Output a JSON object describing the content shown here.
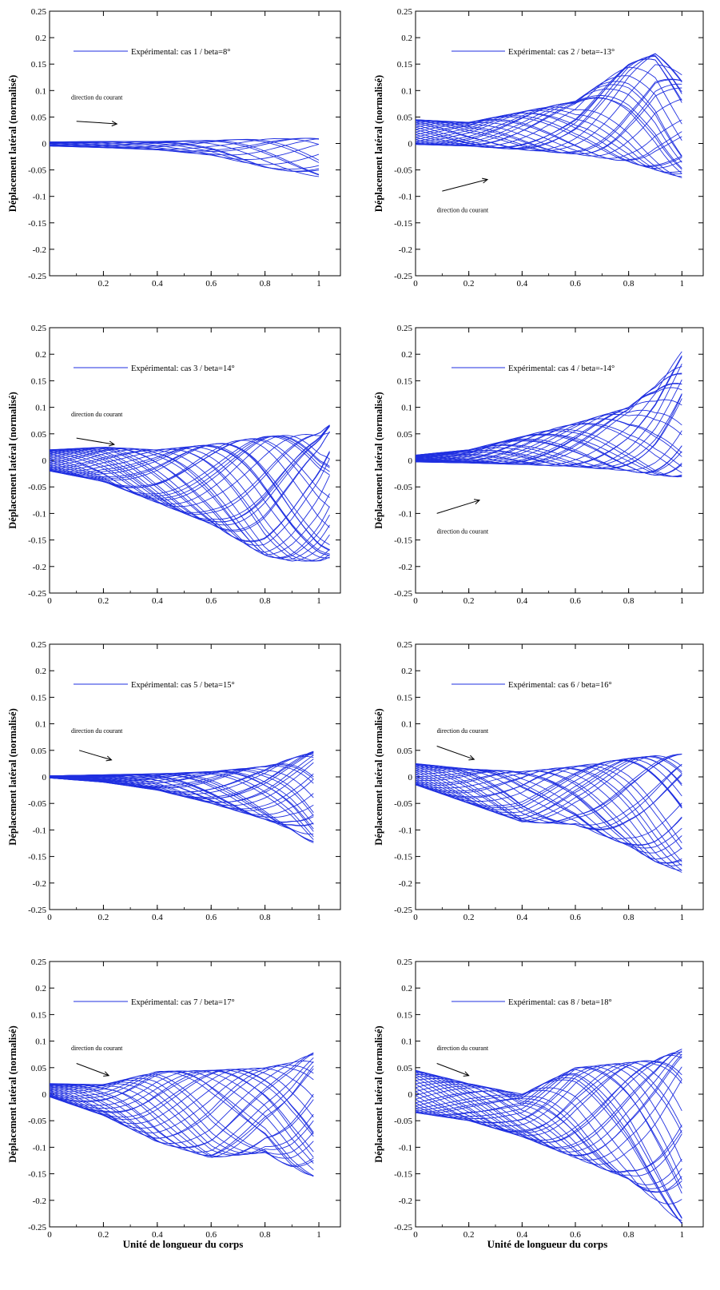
{
  "figure": {
    "x_axis_label": "Unité de longueur du corps",
    "y_axis_label": "Déplacement latéral (normalisé)",
    "annotation": "direction du courant",
    "line_color": "#1f2fe0"
  },
  "chart_data": [
    {
      "type": "line",
      "legend": "Expérimental: cas 1 /  beta=8°",
      "ylabel": "Déplacement latéral (normalisé)",
      "xlabel": "",
      "xlim": [
        0,
        1.08
      ],
      "ylim": [
        -0.25,
        0.25
      ],
      "x_ticks": [
        0.2,
        0.4,
        0.6,
        0.8,
        1
      ],
      "y_ticks": [
        -0.25,
        -0.2,
        -0.15,
        -0.1,
        -0.05,
        0,
        0.05,
        0.1,
        0.15,
        0.2,
        0.25
      ],
      "envelope": {
        "x": [
          0,
          0.2,
          0.4,
          0.6,
          0.8,
          1.0
        ],
        "upper": [
          0.003,
          0.004,
          0.004,
          0.006,
          0.009,
          0.01
        ],
        "lower": [
          -0.005,
          -0.008,
          -0.012,
          -0.022,
          -0.045,
          -0.063
        ]
      },
      "n_curves": 14,
      "arrow": {
        "from": [
          0.1,
          0.042
        ],
        "to": [
          0.25,
          0.037
        ]
      },
      "annotation_position": [
        0.08,
        0.083
      ]
    },
    {
      "type": "line",
      "legend": "Expérimental: cas 2 /  beta=-13°",
      "ylabel": "Déplacement latéral (normalisé)",
      "xlabel": "",
      "xlim": [
        0,
        1.08
      ],
      "ylim": [
        -0.25,
        0.25
      ],
      "x_ticks": [
        0,
        0.2,
        0.4,
        0.6,
        0.8,
        1
      ],
      "y_ticks": [
        -0.25,
        -0.2,
        -0.15,
        -0.1,
        -0.05,
        0,
        0.05,
        0.1,
        0.15,
        0.2,
        0.25
      ],
      "envelope": {
        "x": [
          0,
          0.2,
          0.4,
          0.6,
          0.8,
          0.9,
          1.0
        ],
        "upper": [
          0.045,
          0.04,
          0.06,
          0.08,
          0.15,
          0.17,
          0.13
        ],
        "lower": [
          -0.002,
          -0.005,
          -0.012,
          -0.02,
          -0.035,
          -0.05,
          -0.065
        ]
      },
      "n_curves": 30,
      "arrow": {
        "from": [
          0.1,
          -0.09
        ],
        "to": [
          0.27,
          -0.068
        ]
      },
      "annotation_position": [
        0.08,
        -0.13
      ]
    },
    {
      "type": "line",
      "legend": "Expérimental: cas 3 / beta=14°",
      "ylabel": "Déplacement latéral (normalisé)",
      "xlabel": "",
      "xlim": [
        0,
        1.08
      ],
      "ylim": [
        -0.25,
        0.25
      ],
      "x_ticks": [
        0,
        0.2,
        0.4,
        0.6,
        0.8,
        1
      ],
      "y_ticks": [
        -0.25,
        -0.2,
        -0.15,
        -0.1,
        -0.05,
        0,
        0.05,
        0.1,
        0.15,
        0.2,
        0.25
      ],
      "envelope": {
        "x": [
          0,
          0.2,
          0.4,
          0.6,
          0.8,
          0.9,
          1.0,
          1.04
        ],
        "upper": [
          0.02,
          0.025,
          0.02,
          0.03,
          0.045,
          0.048,
          0.05,
          0.068
        ],
        "lower": [
          -0.02,
          -0.04,
          -0.08,
          -0.12,
          -0.18,
          -0.19,
          -0.19,
          -0.185
        ]
      },
      "n_curves": 36,
      "arrow": {
        "from": [
          0.1,
          0.042
        ],
        "to": [
          0.24,
          0.03
        ]
      },
      "annotation_position": [
        0.08,
        0.083
      ]
    },
    {
      "type": "line",
      "legend": "Expérimental: cas 4 /  beta=-14°",
      "ylabel": "Déplacement latéral (normalisé)",
      "xlabel": "",
      "xlim": [
        0,
        1.08
      ],
      "ylim": [
        -0.25,
        0.25
      ],
      "x_ticks": [
        0,
        0.2,
        0.4,
        0.6,
        0.8,
        1
      ],
      "y_ticks": [
        -0.25,
        -0.2,
        -0.15,
        -0.1,
        -0.05,
        0,
        0.05,
        0.1,
        0.15,
        0.2,
        0.25
      ],
      "envelope": {
        "x": [
          0,
          0.2,
          0.4,
          0.6,
          0.8,
          0.9,
          1.0
        ],
        "upper": [
          0.01,
          0.02,
          0.045,
          0.07,
          0.1,
          0.14,
          0.205
        ],
        "lower": [
          -0.003,
          -0.005,
          -0.008,
          -0.012,
          -0.02,
          -0.028,
          -0.032
        ]
      },
      "n_curves": 30,
      "arrow": {
        "from": [
          0.08,
          -0.1
        ],
        "to": [
          0.24,
          -0.075
        ]
      },
      "annotation_position": [
        0.08,
        -0.138
      ]
    },
    {
      "type": "line",
      "legend": "Expérimental: cas 5 /  beta=15°",
      "ylabel": "Déplacement latéral (normalisé)",
      "xlabel": "",
      "xlim": [
        0,
        1.08
      ],
      "ylim": [
        -0.25,
        0.25
      ],
      "x_ticks": [
        0,
        0.2,
        0.4,
        0.6,
        0.8,
        1
      ],
      "y_ticks": [
        -0.25,
        -0.2,
        -0.15,
        -0.1,
        -0.05,
        0,
        0.05,
        0.1,
        0.15,
        0.2,
        0.25
      ],
      "envelope": {
        "x": [
          0,
          0.2,
          0.4,
          0.6,
          0.8,
          0.9,
          0.98
        ],
        "upper": [
          0.002,
          0.004,
          0.006,
          0.01,
          0.02,
          0.035,
          0.048
        ],
        "lower": [
          -0.002,
          -0.01,
          -0.025,
          -0.05,
          -0.08,
          -0.1,
          -0.128
        ]
      },
      "n_curves": 32,
      "arrow": {
        "from": [
          0.11,
          0.05
        ],
        "to": [
          0.23,
          0.032
        ]
      },
      "annotation_position": [
        0.08,
        0.083
      ]
    },
    {
      "type": "line",
      "legend": "Expérimental: cas 6 /  beta=16°",
      "ylabel": "Déplacement latéral (normalisé)",
      "xlabel": "",
      "xlim": [
        0,
        1.08
      ],
      "ylim": [
        -0.25,
        0.25
      ],
      "x_ticks": [
        0,
        0.2,
        0.4,
        0.6,
        0.8,
        1
      ],
      "y_ticks": [
        -0.25,
        -0.2,
        -0.15,
        -0.1,
        -0.05,
        0,
        0.05,
        0.1,
        0.15,
        0.2,
        0.25
      ],
      "envelope": {
        "x": [
          0,
          0.2,
          0.4,
          0.6,
          0.8,
          0.9,
          1.0
        ],
        "upper": [
          0.025,
          0.015,
          0.01,
          0.02,
          0.035,
          0.04,
          0.043
        ],
        "lower": [
          -0.015,
          -0.05,
          -0.085,
          -0.09,
          -0.13,
          -0.16,
          -0.18
        ]
      },
      "n_curves": 32,
      "arrow": {
        "from": [
          0.08,
          0.058
        ],
        "to": [
          0.22,
          0.033
        ]
      },
      "annotation_position": [
        0.08,
        0.083
      ]
    },
    {
      "type": "line",
      "legend": "Expérimental: cas 7 /  beta=17°",
      "ylabel": "Déplacement latéral (normalisé)",
      "xlabel": "Unité de longueur du corps",
      "xlim": [
        0,
        1.08
      ],
      "ylim": [
        -0.25,
        0.25
      ],
      "x_ticks": [
        0,
        0.2,
        0.4,
        0.6,
        0.8,
        1
      ],
      "y_ticks": [
        -0.25,
        -0.2,
        -0.15,
        -0.1,
        -0.05,
        0,
        0.05,
        0.1,
        0.15,
        0.2,
        0.25
      ],
      "envelope": {
        "x": [
          0,
          0.2,
          0.4,
          0.6,
          0.8,
          0.9,
          0.98
        ],
        "upper": [
          0.02,
          0.018,
          0.043,
          0.045,
          0.05,
          0.06,
          0.078
        ],
        "lower": [
          -0.005,
          -0.04,
          -0.09,
          -0.12,
          -0.11,
          -0.14,
          -0.155
        ]
      },
      "n_curves": 30,
      "arrow": {
        "from": [
          0.1,
          0.058
        ],
        "to": [
          0.22,
          0.035
        ]
      },
      "annotation_position": [
        0.08,
        0.083
      ]
    },
    {
      "type": "line",
      "legend": "Expérimental: cas 8 /  beta=18°",
      "ylabel": "Déplacement latéral (normalisé)",
      "xlabel": "Unité de longueur du corps",
      "xlim": [
        0,
        1.08
      ],
      "ylim": [
        -0.25,
        0.25
      ],
      "x_ticks": [
        0,
        0.2,
        0.4,
        0.6,
        0.8,
        1
      ],
      "y_ticks": [
        -0.25,
        -0.2,
        -0.15,
        -0.1,
        -0.05,
        0,
        0.05,
        0.1,
        0.15,
        0.2,
        0.25
      ],
      "envelope": {
        "x": [
          0,
          0.2,
          0.4,
          0.6,
          0.8,
          0.9,
          1.0
        ],
        "upper": [
          0.045,
          0.02,
          0.0,
          0.05,
          0.06,
          0.065,
          0.085
        ],
        "lower": [
          -0.035,
          -0.05,
          -0.08,
          -0.12,
          -0.16,
          -0.2,
          -0.245
        ]
      },
      "n_curves": 34,
      "arrow": {
        "from": [
          0.08,
          0.058
        ],
        "to": [
          0.2,
          0.035
        ]
      },
      "annotation_position": [
        0.08,
        0.083
      ]
    }
  ]
}
